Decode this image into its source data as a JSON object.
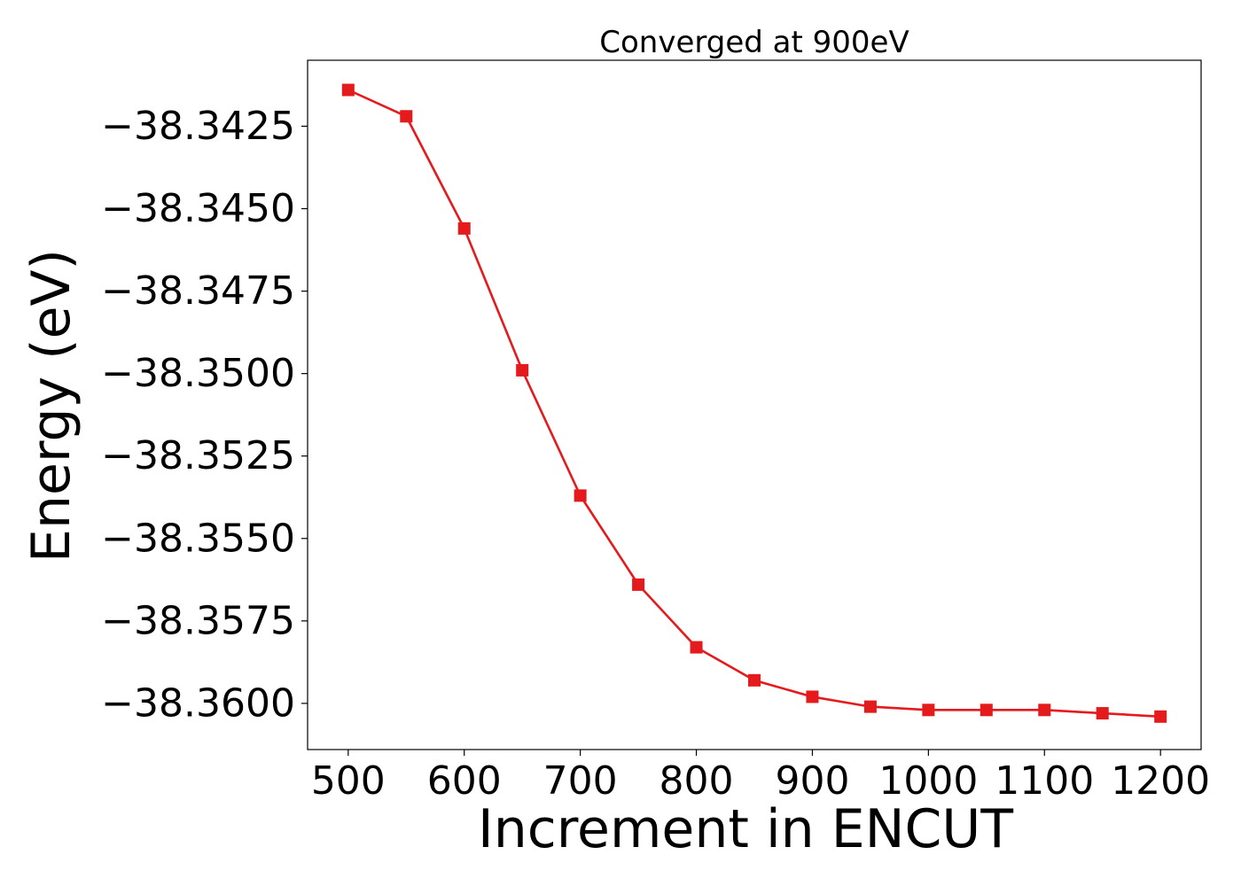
{
  "chart_data": {
    "type": "line",
    "title": "Converged at 900eV",
    "xlabel": "Increment in ENCUT",
    "ylabel": "Energy (eV)",
    "xlim": [
      465,
      1235
    ],
    "ylim": [
      -38.3614,
      -38.3405
    ],
    "x_ticks": [
      {
        "value": 500,
        "label": "500"
      },
      {
        "value": 600,
        "label": "600"
      },
      {
        "value": 700,
        "label": "700"
      },
      {
        "value": 800,
        "label": "800"
      },
      {
        "value": 900,
        "label": "900"
      },
      {
        "value": 1000,
        "label": "1000"
      },
      {
        "value": 1100,
        "label": "1100"
      },
      {
        "value": 1200,
        "label": "1200"
      }
    ],
    "y_ticks": [
      {
        "value": -38.3425,
        "label": "−38.3425"
      },
      {
        "value": -38.345,
        "label": "−38.3450"
      },
      {
        "value": -38.3475,
        "label": "−38.3475"
      },
      {
        "value": -38.35,
        "label": "−38.3500"
      },
      {
        "value": -38.3525,
        "label": "−38.3525"
      },
      {
        "value": -38.355,
        "label": "−38.3550"
      },
      {
        "value": -38.3575,
        "label": "−38.3575"
      },
      {
        "value": -38.36,
        "label": "−38.3600"
      }
    ],
    "grid": false,
    "series": [
      {
        "color": "#e41a1c",
        "marker": "square",
        "x": [
          500,
          550,
          600,
          650,
          700,
          750,
          800,
          850,
          900,
          950,
          1000,
          1050,
          1100,
          1150,
          1200
        ],
        "y": [
          -38.3414,
          -38.3422,
          -38.3456,
          -38.3499,
          -38.3537,
          -38.3564,
          -38.3583,
          -38.3593,
          -38.3598,
          -38.3601,
          -38.3602,
          -38.3602,
          -38.3602,
          -38.3603,
          -38.3604
        ]
      }
    ]
  }
}
